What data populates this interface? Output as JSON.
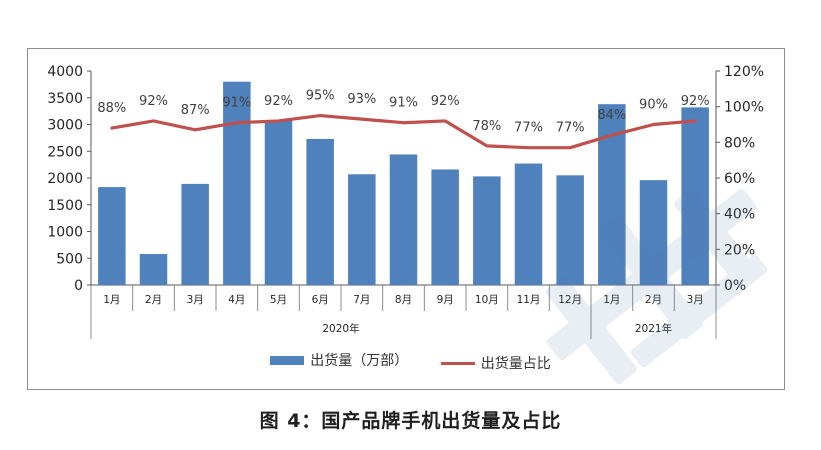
{
  "caption": "图 4：国产品牌手机出货量及占比",
  "chart_data": {
    "type": "bar",
    "categories": [
      "1月",
      "2月",
      "3月",
      "4月",
      "5月",
      "6月",
      "7月",
      "8月",
      "9月",
      "10月",
      "11月",
      "12月",
      "1月",
      "2月",
      "3月"
    ],
    "year_groups": [
      {
        "label": "2020年",
        "count": 12
      },
      {
        "label": "2021年",
        "count": 3
      }
    ],
    "series": [
      {
        "name": "出货量（万部）",
        "type": "bar",
        "axis": "left",
        "color": "#4f81bd",
        "values": [
          1830,
          580,
          1890,
          3800,
          3080,
          2730,
          2070,
          2440,
          2160,
          2030,
          2270,
          2050,
          3380,
          1960,
          3320
        ]
      },
      {
        "name": "出货量占比",
        "type": "line",
        "axis": "right",
        "color": "#c0504d",
        "values": [
          88,
          92,
          87,
          91,
          92,
          95,
          93,
          91,
          92,
          78,
          77,
          77,
          84,
          90,
          92
        ],
        "labels": [
          "88%",
          "92%",
          "87%",
          "91%",
          "92%",
          "95%",
          "93%",
          "91%",
          "92%",
          "78%",
          "77%",
          "77%",
          "84%",
          "90%",
          "92%"
        ]
      }
    ],
    "ylim_left": [
      0,
      4000
    ],
    "yticks_left": [
      "0",
      "500",
      "1000",
      "1500",
      "2000",
      "2500",
      "3000",
      "3500",
      "4000"
    ],
    "ylim_right": [
      0,
      120
    ],
    "yticks_right": [
      "0%",
      "20%",
      "40%",
      "60%",
      "80%",
      "100%",
      "120%"
    ],
    "legend_position": "bottom",
    "grid": false
  }
}
